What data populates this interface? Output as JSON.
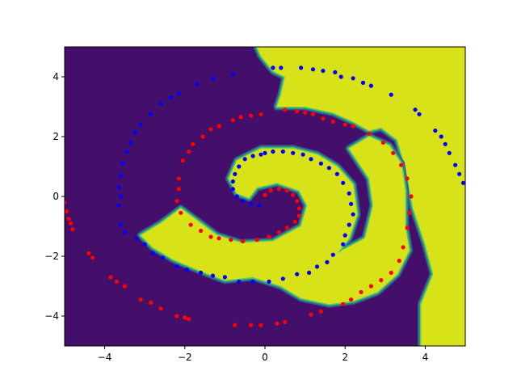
{
  "chart_data": {
    "type": "scatter",
    "title": "",
    "xlabel": "",
    "ylabel": "",
    "xlim": [
      -5,
      5
    ],
    "ylim": [
      -5,
      5
    ],
    "grid": false,
    "legend": "none",
    "background": {
      "kind": "decision-regions",
      "colors": {
        "class_a": "#440f6b",
        "class_b": "#d7e219",
        "boundary": [
          "#3b528b",
          "#21918c",
          "#27ad81",
          "#5ec962"
        ]
      },
      "class_b_region_outline": [
        [
          -1.2,
          -1.3
        ],
        [
          -0.6,
          -1.55
        ],
        [
          0.2,
          -1.5
        ],
        [
          0.9,
          -1.0
        ],
        [
          1.05,
          -0.3
        ],
        [
          0.85,
          0.2
        ],
        [
          0.3,
          0.45
        ],
        [
          -0.2,
          0.3
        ],
        [
          -0.4,
          -0.05
        ],
        [
          -0.7,
          0.1
        ],
        [
          -0.9,
          0.6
        ],
        [
          -0.7,
          1.2
        ],
        [
          -0.1,
          1.6
        ],
        [
          0.7,
          1.6
        ],
        [
          1.3,
          1.4
        ],
        [
          1.8,
          1.0
        ],
        [
          2.2,
          0.4
        ],
        [
          2.3,
          -0.6
        ],
        [
          2.1,
          -1.4
        ],
        [
          1.8,
          -1.9
        ],
        [
          2.5,
          -1.4
        ],
        [
          2.7,
          -0.3
        ],
        [
          2.6,
          0.6
        ],
        [
          2.3,
          1.2
        ],
        [
          2.1,
          1.6
        ],
        [
          2.6,
          2.0
        ],
        [
          3.1,
          1.7
        ],
        [
          3.4,
          1.1
        ],
        [
          3.5,
          0.2
        ],
        [
          3.5,
          -1.0
        ],
        [
          3.6,
          -1.8
        ],
        [
          3.3,
          -2.6
        ],
        [
          2.8,
          -3.2
        ],
        [
          2.2,
          -3.5
        ],
        [
          1.6,
          -3.6
        ],
        [
          0.9,
          -3.4
        ],
        [
          0.4,
          -3.0
        ],
        [
          -0.3,
          -2.7
        ],
        [
          -1.0,
          -2.8
        ],
        [
          -1.6,
          -2.5
        ],
        [
          -2.3,
          -2.1
        ],
        [
          -2.8,
          -1.7
        ],
        [
          -3.1,
          -1.3
        ],
        [
          -2.6,
          -0.9
        ],
        [
          -2.1,
          -0.4
        ],
        [
          -1.7,
          -0.8
        ]
      ],
      "class_b_top_right": [
        [
          -0.2,
          5
        ],
        [
          5,
          5
        ],
        [
          5,
          -5
        ],
        [
          3.9,
          -5
        ],
        [
          3.9,
          -3.6
        ],
        [
          4.2,
          -2.6
        ],
        [
          4.0,
          -1.6
        ],
        [
          3.7,
          -0.4
        ],
        [
          3.5,
          1.0
        ],
        [
          3.3,
          1.9
        ],
        [
          2.9,
          2.3
        ],
        [
          2.6,
          2.2
        ],
        [
          2.2,
          2.5
        ],
        [
          1.7,
          2.8
        ],
        [
          1.0,
          3.0
        ],
        [
          0.3,
          3.0
        ],
        [
          0.4,
          3.4
        ],
        [
          0.5,
          4.0
        ],
        [
          0.2,
          4.2
        ],
        [
          -0.1,
          4.7
        ]
      ]
    },
    "series": [
      {
        "color": "#0000ff",
        "points": [
          [
            -0.1,
            1.4
          ],
          [
            -0.3,
            1.35
          ],
          [
            -0.5,
            1.25
          ],
          [
            -0.65,
            1.0
          ],
          [
            -0.75,
            0.75
          ],
          [
            -0.8,
            0.5
          ],
          [
            -0.8,
            0.25
          ],
          [
            -0.7,
            0.0
          ],
          [
            -0.55,
            -0.15
          ],
          [
            -0.35,
            -0.25
          ],
          [
            -0.15,
            -0.3
          ],
          [
            0.0,
            1.45
          ],
          [
            0.2,
            1.5
          ],
          [
            0.45,
            1.5
          ],
          [
            0.7,
            1.45
          ],
          [
            0.95,
            1.4
          ],
          [
            1.15,
            1.25
          ],
          [
            1.4,
            1.1
          ],
          [
            1.6,
            0.95
          ],
          [
            1.8,
            0.75
          ],
          [
            1.95,
            0.45
          ],
          [
            2.1,
            0.1
          ],
          [
            2.15,
            -0.25
          ],
          [
            2.2,
            -0.6
          ],
          [
            2.1,
            -0.95
          ],
          [
            2.0,
            -1.3
          ],
          [
            1.95,
            -1.6
          ],
          [
            1.7,
            -1.95
          ],
          [
            1.55,
            -2.2
          ],
          [
            1.3,
            -2.35
          ],
          [
            1.1,
            -2.55
          ],
          [
            0.8,
            -2.6
          ],
          [
            0.45,
            -2.75
          ],
          [
            0.1,
            -2.85
          ],
          [
            -0.3,
            -2.85
          ],
          [
            -0.65,
            -2.85
          ],
          [
            -1.0,
            -2.7
          ],
          [
            -1.3,
            -2.65
          ],
          [
            -1.6,
            -2.55
          ],
          [
            -1.95,
            -2.45
          ],
          [
            -2.2,
            -2.35
          ],
          [
            -2.55,
            -2.05
          ],
          [
            -2.8,
            -1.9
          ],
          [
            -3.0,
            -1.6
          ],
          [
            -3.2,
            -1.4
          ],
          [
            -3.5,
            -1.2
          ],
          [
            -3.6,
            -0.95
          ],
          [
            -3.65,
            -0.3
          ],
          [
            -3.6,
            0.0
          ],
          [
            -3.65,
            0.3
          ],
          [
            -3.6,
            0.7
          ],
          [
            -3.55,
            1.1
          ],
          [
            -3.45,
            1.5
          ],
          [
            -3.35,
            1.8
          ],
          [
            -3.25,
            2.15
          ],
          [
            -3.1,
            2.4
          ],
          [
            -2.85,
            2.75
          ],
          [
            -2.6,
            3.1
          ],
          [
            -2.35,
            3.3
          ],
          [
            -2.15,
            3.45
          ],
          [
            -1.7,
            3.75
          ],
          [
            -1.3,
            3.95
          ],
          [
            -0.8,
            4.1
          ],
          [
            0.2,
            4.3
          ],
          [
            0.4,
            4.3
          ],
          [
            0.9,
            4.3
          ],
          [
            1.2,
            4.25
          ],
          [
            1.45,
            4.2
          ],
          [
            1.75,
            4.15
          ],
          [
            1.9,
            4.0
          ],
          [
            2.2,
            3.95
          ],
          [
            2.45,
            3.8
          ],
          [
            2.65,
            3.7
          ],
          [
            3.15,
            3.4
          ],
          [
            3.75,
            2.9
          ],
          [
            3.85,
            2.75
          ],
          [
            4.25,
            2.2
          ],
          [
            4.4,
            2.0
          ],
          [
            4.5,
            1.75
          ],
          [
            4.6,
            1.45
          ],
          [
            4.75,
            1.05
          ],
          [
            4.85,
            0.75
          ],
          [
            4.95,
            0.45
          ]
        ]
      },
      {
        "color": "#ff0000",
        "points": [
          [
            0.0,
            0.05
          ],
          [
            0.15,
            0.2
          ],
          [
            0.35,
            0.25
          ],
          [
            0.55,
            0.2
          ],
          [
            0.7,
            0.05
          ],
          [
            0.8,
            -0.15
          ],
          [
            0.85,
            -0.4
          ],
          [
            0.85,
            -0.65
          ],
          [
            0.75,
            -0.85
          ],
          [
            0.55,
            -1.05
          ],
          [
            0.35,
            -1.2
          ],
          [
            0.1,
            -1.35
          ],
          [
            -0.2,
            -1.45
          ],
          [
            -0.55,
            -1.5
          ],
          [
            -0.85,
            -1.45
          ],
          [
            -1.15,
            -1.4
          ],
          [
            -1.35,
            -1.35
          ],
          [
            -1.6,
            -1.15
          ],
          [
            -1.85,
            -0.95
          ],
          [
            -2.1,
            -0.55
          ],
          [
            -2.2,
            -0.15
          ],
          [
            -2.15,
            0.25
          ],
          [
            -2.15,
            0.6
          ],
          [
            -2.05,
            1.2
          ],
          [
            -1.9,
            1.5
          ],
          [
            -1.8,
            1.75
          ],
          [
            -1.55,
            2.0
          ],
          [
            -1.35,
            2.25
          ],
          [
            -1.15,
            2.35
          ],
          [
            -0.8,
            2.55
          ],
          [
            -0.6,
            2.65
          ],
          [
            -0.35,
            2.7
          ],
          [
            -0.1,
            2.75
          ],
          [
            0.5,
            2.9
          ],
          [
            0.8,
            2.85
          ],
          [
            1.0,
            2.8
          ],
          [
            1.2,
            2.75
          ],
          [
            1.45,
            2.6
          ],
          [
            1.7,
            2.5
          ],
          [
            2.0,
            2.4
          ],
          [
            2.2,
            2.35
          ],
          [
            2.6,
            2.1
          ],
          [
            2.95,
            1.8
          ],
          [
            3.2,
            1.45
          ],
          [
            3.4,
            1.05
          ],
          [
            3.55,
            0.6
          ],
          [
            3.65,
            0.0
          ],
          [
            3.6,
            -0.55
          ],
          [
            3.55,
            -1.05
          ],
          [
            3.45,
            -1.7
          ],
          [
            3.35,
            -2.15
          ],
          [
            3.15,
            -2.55
          ],
          [
            2.9,
            -2.8
          ],
          [
            2.65,
            -3.0
          ],
          [
            2.4,
            -3.2
          ],
          [
            2.15,
            -3.45
          ],
          [
            1.95,
            -3.6
          ],
          [
            1.4,
            -3.85
          ],
          [
            1.15,
            -3.95
          ],
          [
            0.5,
            -4.2
          ],
          [
            0.3,
            -4.25
          ],
          [
            -0.1,
            -4.3
          ],
          [
            -0.35,
            -4.3
          ],
          [
            -0.75,
            -4.3
          ],
          [
            -2.2,
            -4.0
          ],
          [
            -2.0,
            -4.05
          ],
          [
            -1.9,
            -4.1
          ],
          [
            -2.6,
            -3.75
          ],
          [
            -2.85,
            -3.55
          ],
          [
            -3.1,
            -3.45
          ],
          [
            -3.5,
            -3.0
          ],
          [
            -3.7,
            -2.85
          ],
          [
            -3.85,
            -2.7
          ],
          [
            -4.3,
            -2.05
          ],
          [
            -4.4,
            -1.9
          ],
          [
            -4.8,
            -1.1
          ],
          [
            -4.85,
            -0.9
          ],
          [
            -4.9,
            -0.75
          ],
          [
            -4.95,
            -0.5
          ],
          [
            -5.0,
            -0.2
          ]
        ]
      }
    ]
  }
}
